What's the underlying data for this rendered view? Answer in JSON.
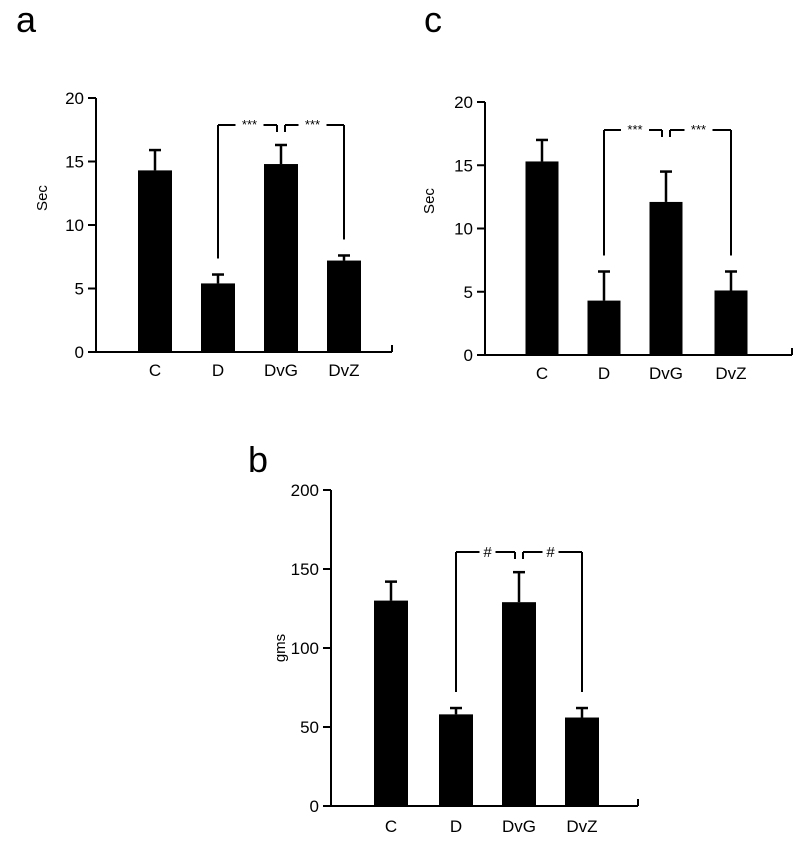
{
  "chart_data": [
    {
      "panel_label": "a",
      "type": "bar",
      "categories": [
        "C",
        "D",
        "DvG",
        "DvZ"
      ],
      "values": [
        14.3,
        5.4,
        14.8,
        7.2
      ],
      "errors": [
        1.6,
        0.7,
        1.5,
        0.4
      ],
      "ylabel": "Sec",
      "ylim": [
        0,
        20
      ],
      "yticks": [
        0,
        5,
        10,
        15,
        20
      ],
      "significance": [
        {
          "from": "D",
          "to": "DvG",
          "label": "***"
        },
        {
          "from": "DvG",
          "to": "DvZ",
          "label": "***"
        }
      ],
      "bar_color": "#000000"
    },
    {
      "panel_label": "c",
      "type": "bar",
      "categories": [
        "C",
        "D",
        "DvG",
        "DvZ"
      ],
      "values": [
        15.3,
        4.3,
        12.1,
        5.1
      ],
      "errors": [
        1.7,
        2.3,
        2.4,
        1.5
      ],
      "ylabel": "Sec",
      "ylim": [
        0,
        20
      ],
      "yticks": [
        0,
        5,
        10,
        15,
        20
      ],
      "significance": [
        {
          "from": "D",
          "to": "DvG",
          "label": "***"
        },
        {
          "from": "DvG",
          "to": "DvZ",
          "label": "***"
        }
      ],
      "bar_color": "#000000"
    },
    {
      "panel_label": "b",
      "type": "bar",
      "categories": [
        "C",
        "D",
        "DvG",
        "DvZ"
      ],
      "values": [
        130,
        58,
        129,
        56
      ],
      "errors": [
        12,
        4,
        19,
        6
      ],
      "ylabel": "gms",
      "ylim": [
        0,
        200
      ],
      "yticks": [
        0,
        50,
        100,
        150,
        200
      ],
      "significance": [
        {
          "from": "D",
          "to": "DvG",
          "label": "#"
        },
        {
          "from": "DvG",
          "to": "DvZ",
          "label": "#"
        }
      ],
      "bar_color": "#000000"
    }
  ]
}
